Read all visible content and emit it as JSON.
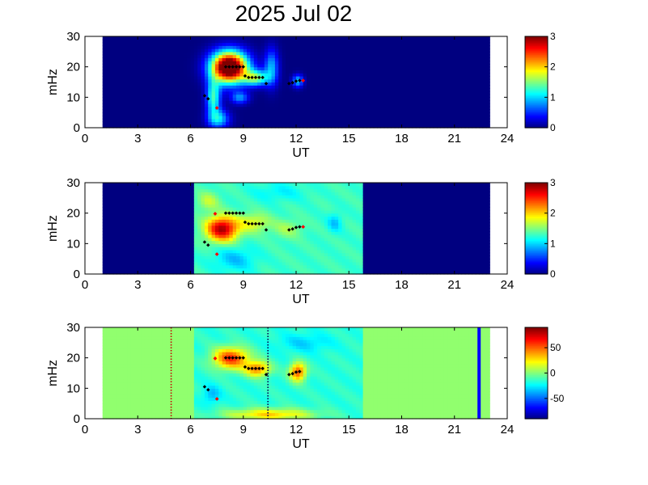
{
  "figure_title": "2025 Jul 02",
  "colors": {
    "background_level": "#00008f",
    "neutral_level": "#91ff6e",
    "line_marker": "#0000ff",
    "dotted_marker_red": "#c80000",
    "dotted_marker_blue": "#000050",
    "points_black": "#000000",
    "points_red": "#ff0000"
  },
  "chart_data": [
    {
      "type": "heatmap",
      "panel": "top",
      "xlabel": "UT",
      "ylabel": "mHz",
      "xlim": [
        0,
        24
      ],
      "ylim": [
        0,
        30
      ],
      "xticks": [
        0,
        3,
        6,
        9,
        12,
        15,
        18,
        21,
        24
      ],
      "yticks": [
        0,
        10,
        20,
        30
      ],
      "data_extent_ut": [
        1,
        23
      ],
      "colorbar": {
        "min": 0,
        "max": 3,
        "ticks": [
          "0",
          "1",
          "2",
          "3"
        ]
      },
      "background_value": 0,
      "blobs": [
        {
          "ut": 8.2,
          "mhz": 20,
          "sx": 1.0,
          "sy": 5,
          "v": 3.8
        },
        {
          "ut": 9.7,
          "mhz": 16.5,
          "sx": 0.7,
          "sy": 2.5,
          "v": 1.5
        },
        {
          "ut": 7.3,
          "mhz": 10,
          "sx": 0.4,
          "sy": 6,
          "v": 1.3
        },
        {
          "ut": 7.6,
          "mhz": 3,
          "sx": 0.6,
          "sy": 3,
          "v": 1.0
        },
        {
          "ut": 8.8,
          "mhz": 10,
          "sx": 0.5,
          "sy": 2,
          "v": 0.8
        },
        {
          "ut": 10.6,
          "mhz": 20,
          "sx": 0.4,
          "sy": 6,
          "v": 0.9
        },
        {
          "ut": 12.1,
          "mhz": 15.5,
          "sx": 0.3,
          "sy": 2,
          "v": 1.0
        }
      ],
      "points_black": [
        [
          6.8,
          10.5
        ],
        [
          7.0,
          9.5
        ],
        [
          8.0,
          20
        ],
        [
          8.2,
          20
        ],
        [
          8.4,
          20
        ],
        [
          8.6,
          20
        ],
        [
          8.8,
          20
        ],
        [
          9.0,
          20
        ],
        [
          9.1,
          17
        ],
        [
          9.3,
          16.5
        ],
        [
          9.5,
          16.5
        ],
        [
          9.7,
          16.5
        ],
        [
          9.9,
          16.5
        ],
        [
          10.1,
          16.5
        ],
        [
          10.3,
          14.5
        ],
        [
          11.6,
          14.5
        ],
        [
          11.8,
          14.8
        ],
        [
          12.0,
          15.3
        ],
        [
          12.2,
          15.5
        ]
      ],
      "points_red": [
        [
          7.5,
          6.5
        ],
        [
          12.4,
          15.5
        ]
      ]
    },
    {
      "type": "heatmap",
      "panel": "middle",
      "xlabel": "UT",
      "ylabel": "mHz",
      "xlim": [
        0,
        24
      ],
      "ylim": [
        0,
        30
      ],
      "xticks": [
        0,
        3,
        6,
        9,
        12,
        15,
        18,
        21,
        24
      ],
      "yticks": [
        0,
        10,
        20,
        30
      ],
      "data_extent_ut": [
        1,
        23
      ],
      "active_range_ut": [
        6.2,
        15.8
      ],
      "colorbar": {
        "min": 0,
        "max": 3,
        "ticks": [
          "0",
          "1",
          "2",
          "3"
        ]
      },
      "background_value": 0,
      "active_base_value": 1.3,
      "blobs": [
        {
          "ut": 7.8,
          "mhz": 15,
          "sx": 0.9,
          "sy": 4,
          "v": 1.6
        },
        {
          "ut": 9.6,
          "mhz": 17,
          "sx": 0.9,
          "sy": 3,
          "v": 0.5
        },
        {
          "ut": 11.5,
          "mhz": 15,
          "sx": 0.8,
          "sy": 3,
          "v": 0.3
        },
        {
          "ut": 7.0,
          "mhz": 24,
          "sx": 0.6,
          "sy": 3,
          "v": 0.4
        },
        {
          "ut": 8.5,
          "mhz": 5,
          "sx": 1.2,
          "sy": 4,
          "v": -0.35
        },
        {
          "ut": 14.2,
          "mhz": 17,
          "sx": 0.4,
          "sy": 3,
          "v": -0.35
        },
        {
          "ut": 11.0,
          "mhz": 27,
          "sx": 1.5,
          "sy": 3,
          "v": -0.2
        }
      ],
      "points_black": [
        [
          6.8,
          10.5
        ],
        [
          7.0,
          9.5
        ],
        [
          8.0,
          20
        ],
        [
          8.2,
          20
        ],
        [
          8.4,
          20
        ],
        [
          8.6,
          20
        ],
        [
          8.8,
          20
        ],
        [
          9.0,
          20
        ],
        [
          9.1,
          17
        ],
        [
          9.3,
          16.5
        ],
        [
          9.5,
          16.5
        ],
        [
          9.7,
          16.5
        ],
        [
          9.9,
          16.5
        ],
        [
          10.1,
          16.5
        ],
        [
          10.3,
          14.5
        ],
        [
          11.6,
          14.5
        ],
        [
          11.8,
          14.8
        ],
        [
          12.0,
          15.3
        ],
        [
          12.2,
          15.5
        ]
      ],
      "points_red": [
        [
          7.5,
          6.5
        ],
        [
          7.4,
          19.8
        ],
        [
          12.4,
          15.5
        ]
      ]
    },
    {
      "type": "heatmap",
      "panel": "bottom",
      "xlabel": "UT",
      "ylabel": "mHz",
      "xlim": [
        0,
        24
      ],
      "ylim": [
        0,
        30
      ],
      "xticks": [
        0,
        3,
        6,
        9,
        12,
        15,
        18,
        21,
        24
      ],
      "yticks": [
        0,
        10,
        20,
        30
      ],
      "data_extent_ut": [
        1,
        23
      ],
      "active_range_ut": [
        6.2,
        15.8
      ],
      "colorbar": {
        "min": -90,
        "max": 90,
        "ticks": [
          "50",
          "0",
          "-50"
        ],
        "tick_values": [
          50,
          0,
          -50
        ]
      },
      "background_value": 0,
      "active_base_value": -15,
      "blobs": [
        {
          "ut": 8.3,
          "mhz": 20,
          "sx": 1.0,
          "sy": 3.5,
          "v": 75
        },
        {
          "ut": 9.8,
          "mhz": 16.5,
          "sx": 0.7,
          "sy": 2.5,
          "v": 60
        },
        {
          "ut": 12.1,
          "mhz": 15.5,
          "sx": 0.45,
          "sy": 3,
          "v": 70
        },
        {
          "ut": 10.5,
          "mhz": 1.5,
          "sx": 2.5,
          "sy": 2,
          "v": 45
        },
        {
          "ut": 7.2,
          "mhz": 8,
          "sx": 0.5,
          "sy": 3,
          "v": -20
        },
        {
          "ut": 12.5,
          "mhz": 25,
          "sx": 1.5,
          "sy": 3,
          "v": -15
        }
      ],
      "vertical_lines": [
        {
          "ut": 4.9,
          "style": "dotted",
          "color": "#c80000"
        },
        {
          "ut": 10.4,
          "style": "dotted",
          "color": "#000050"
        },
        {
          "ut": 22.4,
          "style": "solid",
          "color": "#0000ff"
        }
      ],
      "points_black": [
        [
          6.8,
          10.5
        ],
        [
          7.0,
          9.5
        ],
        [
          8.0,
          20
        ],
        [
          8.2,
          20
        ],
        [
          8.4,
          20
        ],
        [
          8.6,
          20
        ],
        [
          8.8,
          20
        ],
        [
          9.0,
          20
        ],
        [
          9.1,
          17
        ],
        [
          9.3,
          16.5
        ],
        [
          9.5,
          16.5
        ],
        [
          9.7,
          16.5
        ],
        [
          9.9,
          16.5
        ],
        [
          10.1,
          16.5
        ],
        [
          10.3,
          14.5
        ],
        [
          11.6,
          14.5
        ],
        [
          11.8,
          14.8
        ],
        [
          12.0,
          15.3
        ],
        [
          12.2,
          15.5
        ]
      ],
      "points_red": [
        [
          7.5,
          6.5
        ],
        [
          7.4,
          19.8
        ]
      ]
    }
  ]
}
